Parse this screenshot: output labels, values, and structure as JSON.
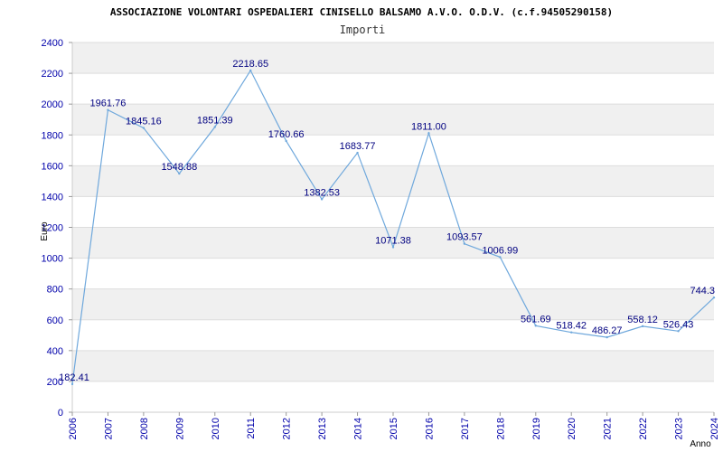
{
  "chart_data": {
    "type": "line",
    "title": "ASSOCIAZIONE VOLONTARI OSPEDALIERI CINISELLO BALSAMO A.V.O. O.D.V. (c.f.94505290158)",
    "subtitle": "Importi",
    "xlabel": "Anno",
    "ylabel": "Euro",
    "x": [
      "2006",
      "2007",
      "2008",
      "2009",
      "2010",
      "2011",
      "2012",
      "2013",
      "2014",
      "2015",
      "2016",
      "2017",
      "2018",
      "2019",
      "2020",
      "2021",
      "2022",
      "2023",
      "2024"
    ],
    "x_tick_labels": [
      "2006",
      "2007",
      "2008",
      "2009",
      "2010",
      "2011",
      "2012",
      "2013",
      "2014",
      "2015",
      "2016",
      "2017",
      "2018",
      "2019",
      "2020",
      "2021",
      "2022",
      "2023",
      "2024"
    ],
    "series": [
      {
        "values": [
          182.41,
          1961.76,
          1845.16,
          1548.88,
          1851.39,
          2218.65,
          1760.66,
          1382.53,
          1683.77,
          1071.38,
          1811.0,
          1093.57,
          1006.99,
          561.69,
          518.42,
          486.27,
          558.12,
          526.43,
          744.3
        ],
        "labels": [
          "182.41",
          "1961.76",
          "1845.16",
          "1548.88",
          "1851.39",
          "2218.65",
          "1760.66",
          "1382.53",
          "1683.77",
          "1071.38",
          "1811.00",
          "1093.57",
          "1006.99",
          "561.69",
          "518.42",
          "486.27",
          "558.12",
          "526.43",
          "744.3"
        ]
      }
    ],
    "ylim": [
      0,
      2400
    ],
    "y_ticks": [
      0,
      200,
      400,
      600,
      800,
      1000,
      1200,
      1400,
      1600,
      1800,
      2000,
      2200,
      2400
    ],
    "y_tick_labels": [
      "0",
      "200",
      "400",
      "600",
      "800",
      "1000",
      "1200",
      "1400",
      "1600",
      "1800",
      "2000",
      "2200",
      "2400"
    ],
    "grid": true,
    "line_color": "#6fa8dc",
    "band_color": "#f0f0f0",
    "tick_color": "#0000aa",
    "label_color": "#000080"
  }
}
